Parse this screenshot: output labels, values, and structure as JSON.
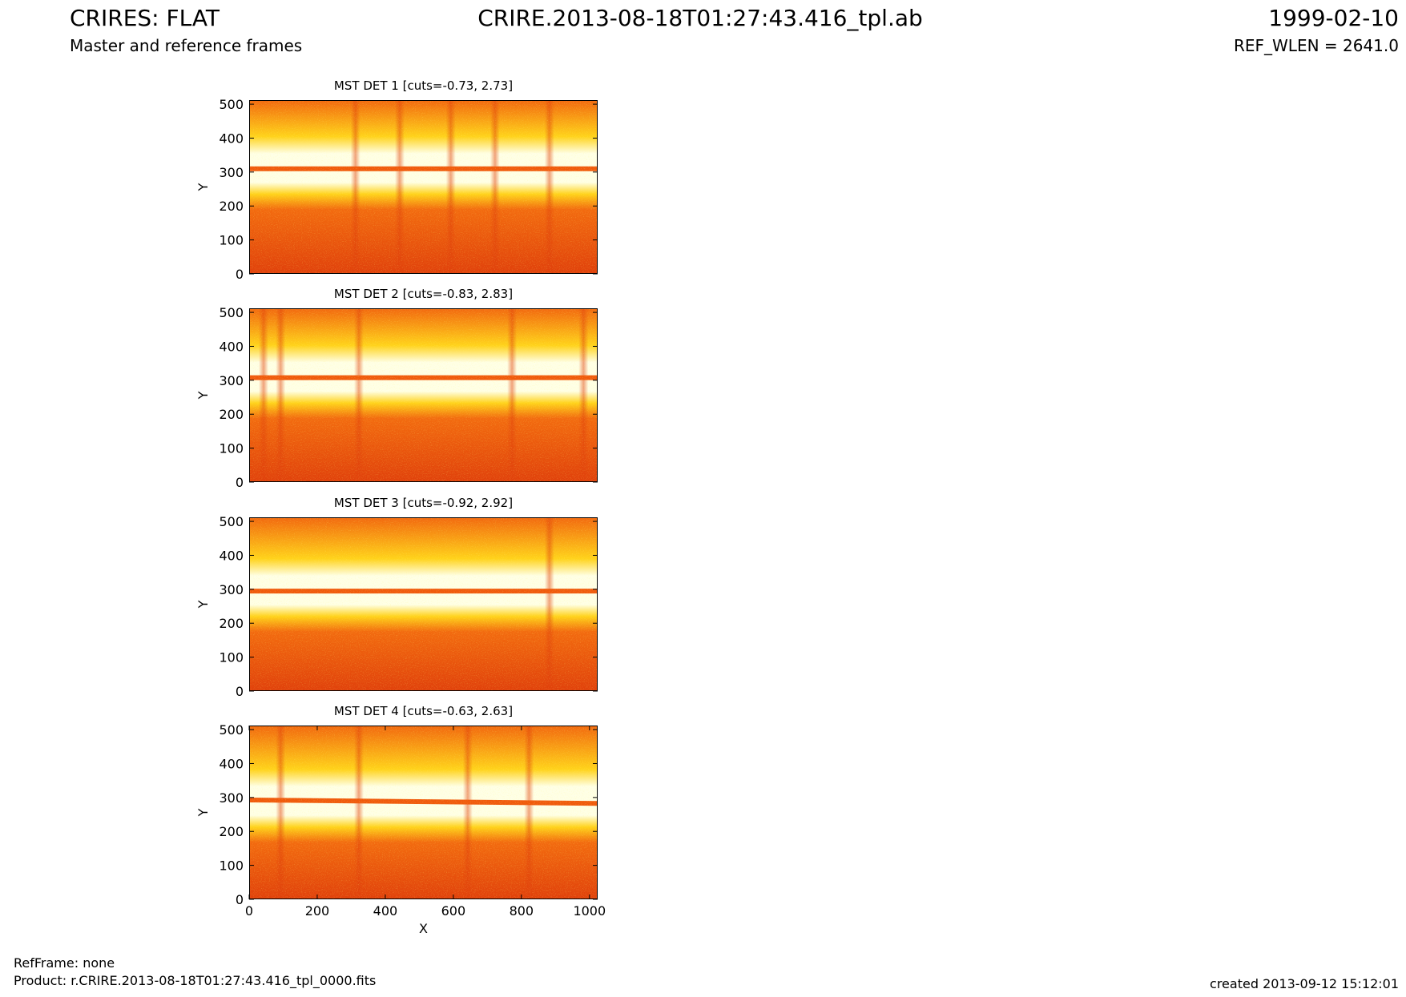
{
  "header": {
    "title_left": "CRIRES: FLAT",
    "subtitle_left": "Master and reference frames",
    "title_center": "CRIRE.2013-08-18T01:27:43.416_tpl.ab",
    "title_right": "1999-02-10",
    "subtitle_right": "REF_WLEN = 2641.0"
  },
  "footer": {
    "refframe": "RefFrame: none",
    "product": "Product: r.CRIRE.2013-08-18T01:27:43.416_tpl_0000.fits",
    "created": "created 2013-09-12 15:12:01"
  },
  "colors": {
    "low": "#e0400b",
    "mid": "#f26a0f",
    "high": "#ffd21a",
    "top": "#ffffe6",
    "band": "#f05a0c"
  },
  "chart_data": [
    {
      "type": "heatmap",
      "title": "MST DET 1 [cuts=-0.73, 2.73]",
      "xlabel": "",
      "ylabel": "Y",
      "xlim": [
        0,
        1024
      ],
      "ylim": [
        0,
        512
      ],
      "xticks": [],
      "yticks": [
        0,
        100,
        200,
        300,
        400,
        500
      ],
      "colormap": "hot",
      "cuts": [
        -0.73,
        2.73
      ],
      "band_y": [
        312,
        312
      ],
      "vertical_features_x": [
        310,
        440,
        590,
        720,
        880
      ]
    },
    {
      "type": "heatmap",
      "title": "MST DET 2 [cuts=-0.83, 2.83]",
      "xlabel": "",
      "ylabel": "Y",
      "xlim": [
        0,
        1024
      ],
      "ylim": [
        0,
        512
      ],
      "xticks": [],
      "yticks": [
        0,
        100,
        200,
        300,
        400,
        500
      ],
      "colormap": "hot",
      "cuts": [
        -0.83,
        2.83
      ],
      "band_y": [
        310,
        310
      ],
      "vertical_features_x": [
        40,
        90,
        320,
        770,
        980
      ]
    },
    {
      "type": "heatmap",
      "title": "MST DET 3 [cuts=-0.92, 2.92]",
      "xlabel": "",
      "ylabel": "Y",
      "xlim": [
        0,
        1024
      ],
      "ylim": [
        0,
        512
      ],
      "xticks": [],
      "yticks": [
        0,
        100,
        200,
        300,
        400,
        500
      ],
      "colormap": "hot",
      "cuts": [
        -0.92,
        2.92
      ],
      "band_y": [
        297,
        297
      ],
      "vertical_features_x": [
        880
      ]
    },
    {
      "type": "heatmap",
      "title": "MST DET 4 [cuts=-0.63, 2.63]",
      "xlabel": "X",
      "ylabel": "Y",
      "xlim": [
        0,
        1024
      ],
      "ylim": [
        0,
        512
      ],
      "xticks": [
        0,
        200,
        400,
        600,
        800,
        1000
      ],
      "yticks": [
        0,
        100,
        200,
        300,
        400,
        500
      ],
      "colormap": "hot",
      "cuts": [
        -0.63,
        2.63
      ],
      "band_y": [
        295,
        285
      ],
      "vertical_features_x": [
        90,
        320,
        640,
        820
      ]
    }
  ]
}
